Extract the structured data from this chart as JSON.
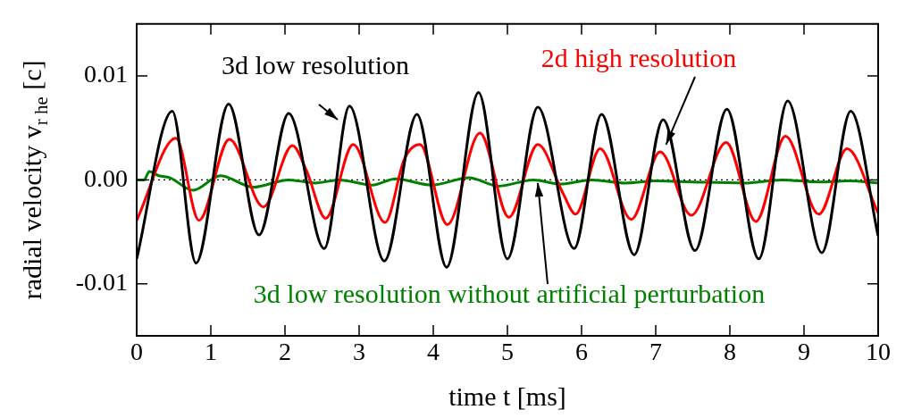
{
  "chart_data": {
    "type": "line",
    "xlabel": "time t [ms]",
    "ylabel": "radial velocity v$_{r he}$ [c]",
    "xlim": [
      0,
      10
    ],
    "xticks": [
      0,
      1,
      2,
      3,
      4,
      5,
      6,
      7,
      8,
      9,
      10
    ],
    "ylim": [
      -0.015,
      0.015
    ],
    "yticks": [
      -0.01,
      {
        "value": 0,
        "label": "0.00"
      },
      0.01
    ],
    "grid": false,
    "legend": false,
    "marker": "none",
    "line_style": "solid",
    "ref_lines": [
      {
        "axis": "y",
        "value": 0,
        "color": "#000000",
        "line_style": "dotted"
      }
    ],
    "annotations": [
      "3d low resolution",
      {
        "text": "2d high resolution",
        "x": 7.14,
        "y": 0.0034
      },
      {
        "text": "3d low resolution without artificial perturbation",
        "x": 5.41,
        "y": -0.0003
      }
    ],
    "series": [
      {
        "color": "#000000",
        "x": [
          0,
          0.48,
          0.8,
          1.24,
          1.65,
          2.05,
          2.53,
          2.87,
          3.34,
          3.78,
          4.18,
          4.61,
          5.0,
          5.41,
          5.9,
          6.27,
          6.71,
          7.1,
          7.53,
          7.96,
          8.39,
          8.78,
          9.24,
          9.63,
          10
        ],
        "values": [
          -0.0076,
          0.0066,
          -0.008,
          0.0073,
          -0.0053,
          0.0064,
          -0.0066,
          0.0071,
          -0.0078,
          0.0063,
          -0.0084,
          0.0084,
          -0.0076,
          0.007,
          -0.0066,
          0.0063,
          -0.0072,
          0.0058,
          -0.0068,
          0.0068,
          -0.0076,
          0.0076,
          -0.007,
          0.0066,
          -0.0054
        ]
      },
      {
        "color": "#ff0000",
        "x": [
          0,
          0.53,
          0.84,
          1.25,
          1.71,
          2.1,
          2.29,
          2.55,
          2.92,
          3.35,
          3.61,
          3.82,
          4.19,
          4.63,
          5.02,
          5.41,
          5.75,
          5.92,
          6.25,
          6.67,
          7.06,
          7.48,
          7.95,
          8.35,
          8.75,
          9.2,
          9.58,
          10
        ],
        "values": [
          -0.0039,
          0.004,
          -0.0039,
          0.0039,
          -0.0026,
          0.0033,
          0.0009,
          -0.0037,
          0.0034,
          -0.0041,
          0.002,
          0.0034,
          -0.0043,
          0.0045,
          -0.0036,
          0.0034,
          -0.0013,
          -0.0033,
          0.003,
          -0.0038,
          0.0027,
          -0.0034,
          0.0036,
          -0.004,
          0.0042,
          -0.0033,
          0.003,
          -0.0032
        ]
      },
      {
        "color": "#008000",
        "x": [
          0,
          0.1,
          0.17,
          0.3,
          0.45,
          0.76,
          1.13,
          1.57,
          2.05,
          2.41,
          2.73,
          3.18,
          3.49,
          3.98,
          4.48,
          4.88,
          5.35,
          5.71,
          6.14,
          6.59,
          7.0,
          7.5,
          8.19,
          8.7,
          9.2,
          9.6,
          10
        ],
        "values": [
          0,
          0,
          0.0008,
          0.0004,
          0.0002,
          -0.001,
          0.0004,
          -0.0007,
          0,
          -0.0003,
          0,
          -0.0005,
          0.0001,
          -0.0005,
          0.0002,
          -0.0006,
          0,
          -0.0004,
          0,
          -0.0003,
          -0.0001,
          -0.0002,
          -0.0003,
          0,
          -0.0002,
          -0.0001,
          -0.0003
        ]
      }
    ]
  }
}
